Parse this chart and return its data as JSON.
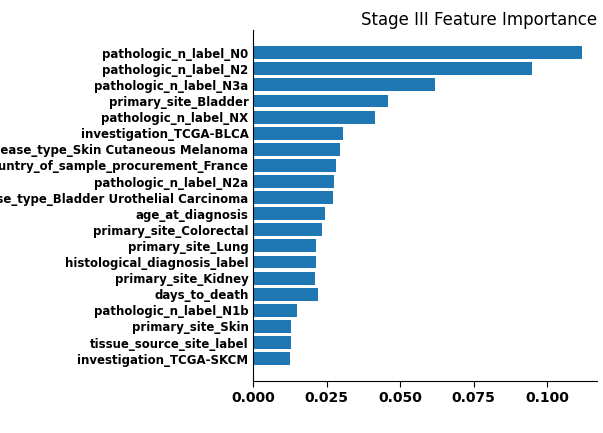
{
  "title": "Stage III Feature Importance",
  "categories": [
    "investigation_TCGA-SKCM",
    "tissue_source_site_label",
    "primary_site_Skin",
    "pathologic_n_label_N1b",
    "days_to_death",
    "primary_site_Kidney",
    "histological_diagnosis_label",
    "primary_site_Lung",
    "primary_site_Colorectal",
    "age_at_diagnosis",
    "disease_type_Bladder Urothelial Carcinoma",
    "pathologic_n_label_N2a",
    "country_of_sample_procurement_France",
    "disease_type_Skin Cutaneous Melanoma",
    "investigation_TCGA-BLCA",
    "pathologic_n_label_NX",
    "primary_site_Bladder",
    "pathologic_n_label_N3a",
    "pathologic_n_label_N2",
    "pathologic_n_label_N0"
  ],
  "values": [
    0.0125,
    0.0128,
    0.013,
    0.015,
    0.022,
    0.021,
    0.0215,
    0.0215,
    0.0235,
    0.0245,
    0.027,
    0.0275,
    0.028,
    0.0295,
    0.0305,
    0.0415,
    0.046,
    0.062,
    0.095,
    0.112
  ],
  "bar_color": "#1f77b4",
  "xlim": [
    0,
    0.117
  ],
  "title_fontsize": 12,
  "tick_fontsize": 8.5,
  "xtick_fontsize": 10,
  "figsize": [
    6.03,
    4.33
  ],
  "dpi": 100,
  "xticks": [
    0.0,
    0.025,
    0.05,
    0.075,
    0.1
  ],
  "xtick_labels": [
    "0.000",
    "0.025",
    "0.050",
    "0.075",
    "0.100"
  ]
}
